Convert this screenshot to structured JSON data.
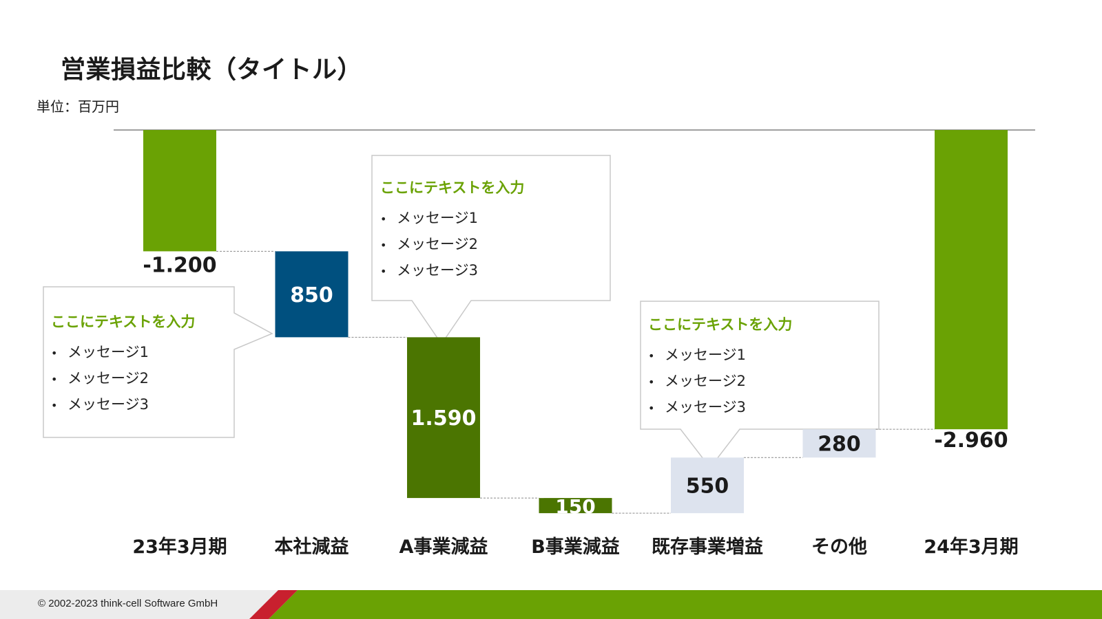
{
  "title": "営業損益比較（タイトル）",
  "unit": "単位：百万円",
  "footer": {
    "copyright": "© 2002-2023 think-cell Software GmbH"
  },
  "colors": {
    "green": "#6aa204",
    "dark_green": "#4b7501",
    "navy": "#00507f",
    "light_blue_gray": "#dde3ee",
    "accent_red": "#c8202e"
  },
  "chart_data": {
    "type": "waterfall",
    "title": "営業損益比較（タイトル）",
    "unit": "単位：百万円",
    "ylim": [
      -3000,
      0
    ],
    "categories": [
      "23年3月期",
      "本社減益",
      "A事業減益",
      "B事業減益",
      "既存事業増益",
      "その他",
      "24年3月期"
    ],
    "bars": [
      {
        "category": "23年3月期",
        "kind": "total",
        "value": -1200,
        "label": "-1.200",
        "color": "#6aa204",
        "label_color": "#1a1a1a",
        "label_pos": "below"
      },
      {
        "category": "本社減益",
        "kind": "delta",
        "value": -850,
        "label": "850",
        "color": "#00507f",
        "label_color": "#ffffff",
        "label_pos": "inside"
      },
      {
        "category": "A事業減益",
        "kind": "delta",
        "value": -1590,
        "label": "1.590",
        "color": "#4b7501",
        "label_color": "#ffffff",
        "label_pos": "inside"
      },
      {
        "category": "B事業減益",
        "kind": "delta",
        "value": -150,
        "label": "150",
        "color": "#4b7501",
        "label_color": "#ffffff",
        "label_pos": "inside"
      },
      {
        "category": "既存事業増益",
        "kind": "delta",
        "value": 550,
        "label": "550",
        "color": "#dde3ee",
        "label_color": "#1a1a1a",
        "label_pos": "inside"
      },
      {
        "category": "その他",
        "kind": "delta",
        "value": 280,
        "label": "280",
        "color": "#dde3ee",
        "label_color": "#1a1a1a",
        "label_pos": "inside"
      },
      {
        "category": "24年3月期",
        "kind": "total",
        "value": -2960,
        "label": "-2.960",
        "color": "#6aa204",
        "label_color": "#1a1a1a",
        "label_pos": "above-end"
      }
    ]
  },
  "callouts": [
    {
      "title": "ここにテキストを入力",
      "items": [
        "メッセージ1",
        "メッセージ2",
        "メッセージ3"
      ]
    },
    {
      "title": "ここにテキストを入力",
      "items": [
        "メッセージ1",
        "メッセージ2",
        "メッセージ3"
      ]
    },
    {
      "title": "ここにテキストを入力",
      "items": [
        "メッセージ1",
        "メッセージ2",
        "メッセージ3"
      ]
    }
  ]
}
